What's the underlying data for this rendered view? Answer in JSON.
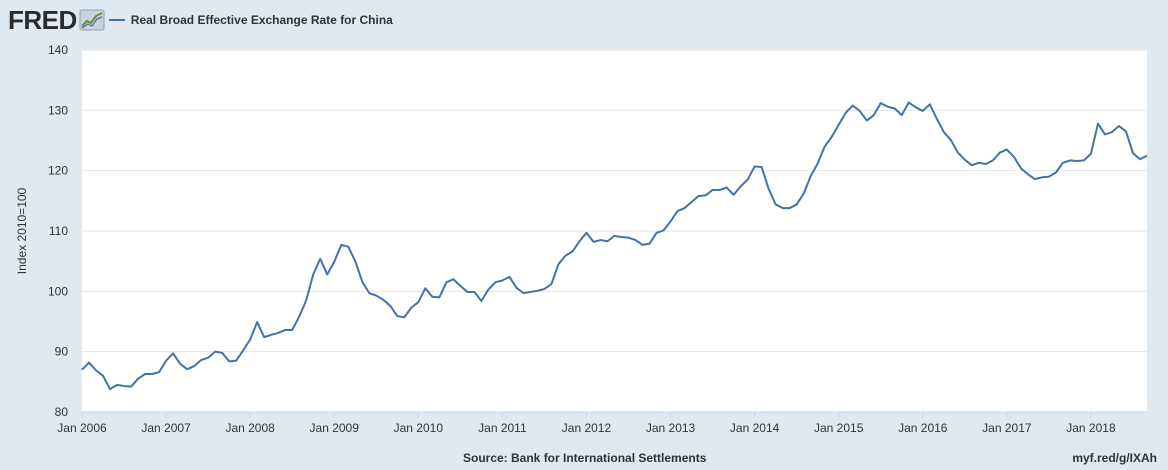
{
  "header": {
    "logo_text": "FRED",
    "logo_icon": "trend-line-icon"
  },
  "footer": {
    "source": "Source: Bank for International Settlements",
    "url": "myf.red/g/IXAh"
  },
  "colors": {
    "series": "#4572a7",
    "background": "#e1e9f0",
    "plot_background": "#ffffff",
    "grid": "#e6e6e6"
  },
  "chart_data": {
    "type": "line",
    "title": "",
    "xlabel": "",
    "ylabel": "Index 2010=100",
    "ylim": [
      80,
      140
    ],
    "yticks": [
      80,
      90,
      100,
      110,
      120,
      130,
      140
    ],
    "xlim": [
      "2006-01",
      "2018-09"
    ],
    "xticks": [
      "Jan 2006",
      "Jan 2007",
      "Jan 2008",
      "Jan 2009",
      "Jan 2010",
      "Jan 2011",
      "Jan 2012",
      "Jan 2013",
      "Jan 2014",
      "Jan 2015",
      "Jan 2016",
      "Jan 2017",
      "Jan 2018"
    ],
    "grid": "horizontal",
    "legend": "top-left",
    "series": [
      {
        "name": "Real Broad Effective Exchange Rate for China",
        "start": "2006-01",
        "frequency": "monthly",
        "values": [
          87.0,
          88.2,
          86.9,
          86.0,
          83.8,
          84.5,
          84.3,
          84.2,
          85.5,
          86.3,
          86.3,
          86.6,
          88.5,
          89.7,
          88.0,
          87.1,
          87.6,
          88.6,
          89.0,
          90.0,
          89.8,
          88.4,
          88.5,
          90.2,
          92.0,
          94.9,
          92.4,
          92.8,
          93.1,
          93.6,
          93.6,
          95.8,
          98.5,
          102.8,
          105.4,
          102.8,
          104.9,
          107.7,
          107.4,
          105.0,
          101.6,
          99.7,
          99.3,
          98.6,
          97.6,
          95.9,
          95.7,
          97.3,
          98.2,
          100.5,
          99.1,
          99.0,
          101.5,
          102.0,
          100.9,
          99.9,
          99.9,
          98.4,
          100.3,
          101.5,
          101.8,
          102.4,
          100.6,
          99.7,
          99.9,
          100.1,
          100.4,
          101.2,
          104.5,
          105.9,
          106.6,
          108.3,
          109.7,
          108.2,
          108.5,
          108.3,
          109.2,
          109.0,
          108.9,
          108.5,
          107.7,
          107.9,
          109.7,
          110.1,
          111.6,
          113.3,
          113.8,
          114.8,
          115.8,
          115.9,
          116.8,
          116.8,
          117.2,
          116.0,
          117.4,
          118.5,
          120.7,
          120.6,
          117.0,
          114.4,
          113.8,
          113.8,
          114.4,
          116.2,
          119.1,
          121.2,
          124.0,
          125.6,
          127.6,
          129.6,
          130.8,
          129.9,
          128.3,
          129.2,
          131.2,
          130.6,
          130.3,
          129.2,
          131.3,
          130.5,
          129.9,
          131.0,
          128.6,
          126.4,
          125.1,
          123.0,
          121.8,
          120.9,
          121.3,
          121.1,
          121.7,
          123.0,
          123.5,
          122.3,
          120.4,
          119.4,
          118.6,
          118.9,
          119.0,
          119.7,
          121.3,
          121.7,
          121.6,
          121.7,
          122.8,
          127.8,
          126.0,
          126.4,
          127.4,
          126.5,
          122.9,
          121.9,
          122.5
        ]
      }
    ]
  }
}
